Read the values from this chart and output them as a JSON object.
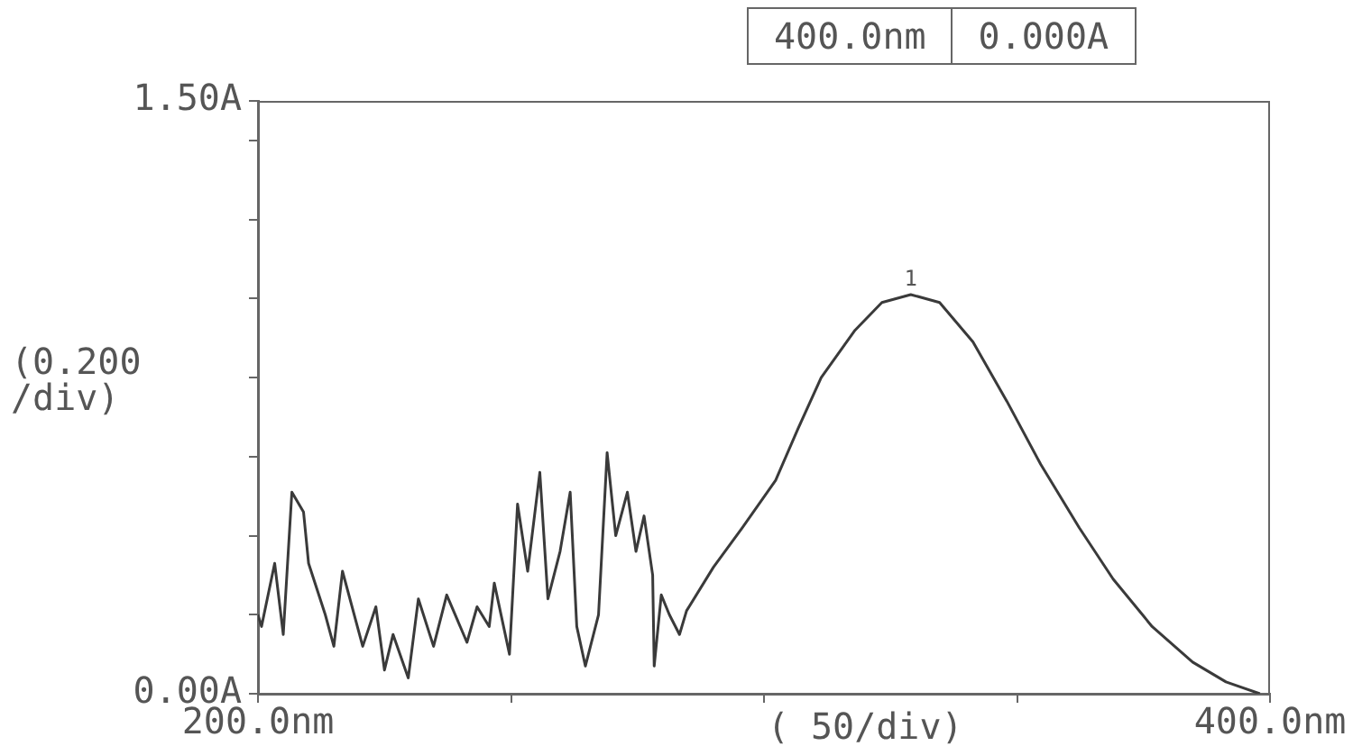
{
  "chart_data": {
    "type": "line",
    "xlabel": "( 50/div)",
    "ylabel": "(0.200 /div)",
    "annotations": [
      "400.0nm",
      "0.000A",
      {
        "text": "1",
        "x": 329,
        "y": 1.01
      }
    ],
    "color": "#3a3a3a",
    "marker": "none",
    "line_style": "solid",
    "legend": false,
    "grid": false,
    "xlim": [
      200,
      400
    ],
    "xticks": [
      {
        "value": 200,
        "label": "200.0nm"
      },
      {
        "value": 250,
        "label": null
      },
      {
        "value": 300,
        "label": null
      },
      {
        "value": 350,
        "label": null
      },
      {
        "value": 400,
        "label": "400.0nm"
      }
    ],
    "ylim": [
      0,
      1.5
    ],
    "yticks": [
      {
        "value": 0,
        "label": "0.00A"
      },
      {
        "value": 0.2,
        "label": null
      },
      {
        "value": 0.4,
        "label": null
      },
      {
        "value": 0.6,
        "label": null
      },
      {
        "value": 0.8,
        "label": null
      },
      {
        "value": 1.0,
        "label": null
      },
      {
        "value": 1.2,
        "label": null
      },
      {
        "value": 1.4,
        "label": null
      },
      {
        "value": 1.5,
        "label": "1.50A"
      }
    ],
    "x": [
      200,
      200.7,
      203.3,
      205,
      206.7,
      209,
      210,
      213.3,
      215,
      216.7,
      220.7,
      223.3,
      225,
      226.7,
      229.7,
      231.7,
      234.7,
      237.3,
      241.3,
      243.3,
      245.7,
      246.7,
      249.7,
      251.3,
      253.3,
      255.7,
      257.3,
      259.7,
      261.7,
      263,
      264.7,
      267.3,
      269,
      270.7,
      273,
      274.7,
      276.3,
      278,
      278.3,
      279.7,
      281.3,
      283.3,
      284.7,
      290,
      295.7,
      302.3,
      306.7,
      311.3,
      318,
      323.3,
      329,
      334.7,
      341.3,
      348,
      354.7,
      362.3,
      369,
      376.7,
      384.7,
      391.3,
      398
    ],
    "values": [
      0.2,
      0.17,
      0.33,
      0.15,
      0.51,
      0.46,
      0.33,
      0.2,
      0.12,
      0.31,
      0.12,
      0.22,
      0.06,
      0.15,
      0.04,
      0.24,
      0.12,
      0.25,
      0.13,
      0.22,
      0.17,
      0.28,
      0.1,
      0.48,
      0.31,
      0.56,
      0.24,
      0.36,
      0.51,
      0.17,
      0.07,
      0.2,
      0.61,
      0.4,
      0.51,
      0.36,
      0.45,
      0.3,
      0.07,
      0.25,
      0.2,
      0.15,
      0.21,
      0.32,
      0.42,
      0.54,
      0.67,
      0.8,
      0.92,
      0.99,
      1.01,
      0.99,
      0.89,
      0.74,
      0.58,
      0.42,
      0.29,
      0.17,
      0.08,
      0.03,
      0.0
    ]
  }
}
